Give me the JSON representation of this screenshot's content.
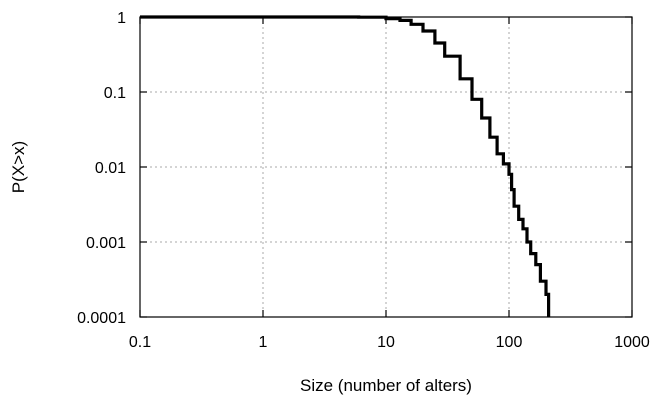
{
  "chart_data": {
    "type": "line",
    "title": "",
    "xlabel": "Size (number of alters)",
    "ylabel": "P(X>x)",
    "x_scale": "log",
    "y_scale": "log",
    "xlim": [
      0.1,
      1000
    ],
    "ylim": [
      0.0001,
      1
    ],
    "x_ticks": [
      0.1,
      1,
      10,
      100,
      1000
    ],
    "x_tick_labels": [
      "0.1",
      "1",
      "10",
      "100",
      "1000"
    ],
    "y_ticks": [
      1,
      0.1,
      0.01,
      0.001,
      0.0001
    ],
    "y_tick_labels": [
      "1",
      "0.1",
      "0.01",
      "0.001",
      "0.0001"
    ],
    "grid": true,
    "legend": "none",
    "series": [
      {
        "color": "#000000",
        "step": true,
        "points": [
          [
            0.1,
            1.0
          ],
          [
            3,
            1.0
          ],
          [
            6,
            0.995
          ],
          [
            10,
            0.95
          ],
          [
            13,
            0.9
          ],
          [
            16,
            0.8
          ],
          [
            20,
            0.65
          ],
          [
            25,
            0.45
          ],
          [
            30,
            0.3
          ],
          [
            40,
            0.15
          ],
          [
            50,
            0.08
          ],
          [
            60,
            0.045
          ],
          [
            70,
            0.025
          ],
          [
            80,
            0.015
          ],
          [
            90,
            0.011
          ],
          [
            100,
            0.008
          ],
          [
            105,
            0.005
          ],
          [
            110,
            0.003
          ],
          [
            120,
            0.002
          ],
          [
            130,
            0.0015
          ],
          [
            140,
            0.001
          ],
          [
            150,
            0.0007
          ],
          [
            165,
            0.0005
          ],
          [
            180,
            0.0003
          ],
          [
            200,
            0.0002
          ],
          [
            210,
            0.0001
          ]
        ]
      }
    ]
  }
}
